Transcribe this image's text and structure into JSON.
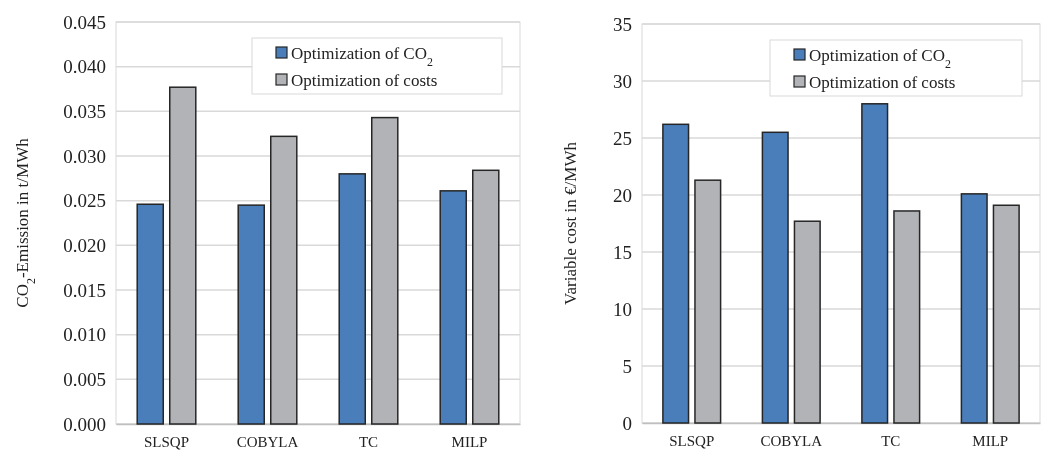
{
  "chart_data": [
    {
      "type": "bar",
      "ylabel": "CO$_{2}$-Emission in t/MWh",
      "categories": [
        "SLSQP",
        "COBYLA",
        "TC",
        "MILP"
      ],
      "series": [
        {
          "name": "Optimization of CO$_{2}$",
          "color": "#4a7ebb",
          "values": [
            0.0246,
            0.0245,
            0.028,
            0.0261
          ]
        },
        {
          "name": "Optimization of costs",
          "color": "#b1b3b6",
          "values": [
            0.0377,
            0.0322,
            0.0343,
            0.0284
          ]
        }
      ],
      "ylim": [
        0,
        0.045
      ],
      "yticks": [
        {
          "value": 0,
          "label": "0.000"
        },
        {
          "value": 0.005,
          "label": "0.005"
        },
        {
          "value": 0.01,
          "label": "0.010"
        },
        {
          "value": 0.015,
          "label": "0.015"
        },
        {
          "value": 0.02,
          "label": "0.020"
        },
        {
          "value": 0.025,
          "label": "0.025"
        },
        {
          "value": 0.03,
          "label": "0.030"
        },
        {
          "value": 0.035,
          "label": "0.035"
        },
        {
          "value": 0.04,
          "label": "0.040"
        },
        {
          "value": 0.045,
          "label": "0.045"
        }
      ],
      "grid": "y",
      "legend": "top right"
    },
    {
      "type": "bar",
      "ylabel": "Variable cost in €/MWh",
      "categories": [
        "SLSQP",
        "COBYLA",
        "TC",
        "MILP"
      ],
      "series": [
        {
          "name": "Optimization of CO$_{2}$",
          "color": "#4a7ebb",
          "values": [
            26.2,
            25.5,
            28.0,
            20.1
          ]
        },
        {
          "name": "Optimization of costs",
          "color": "#b1b3b6",
          "values": [
            21.3,
            17.7,
            18.6,
            19.1
          ]
        }
      ],
      "ylim": [
        0,
        35
      ],
      "yticks": [
        0,
        5,
        10,
        15,
        20,
        25,
        30,
        35
      ],
      "grid": "y",
      "legend": "top right"
    }
  ]
}
